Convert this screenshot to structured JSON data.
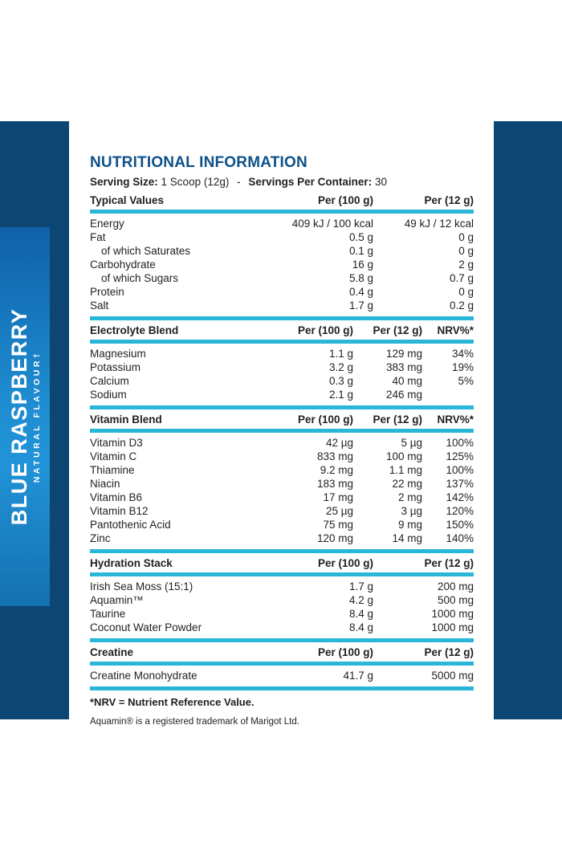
{
  "flavor_panel": {
    "flavor": "BLUE RASPBERRY",
    "subtitle": "NATURAL FLAVOUR†"
  },
  "header": {
    "title": "NUTRITIONAL INFORMATION",
    "serving_size_label": "Serving Size:",
    "serving_size_value": "1 Scoop (12g)",
    "separator": "-",
    "servings_label": "Servings Per Container:",
    "servings_value": "30"
  },
  "sections": [
    {
      "name": "Typical Values",
      "columns": [
        "Per (100 g)",
        "Per (12 g)"
      ],
      "rows": [
        {
          "label": "Energy",
          "per100": "409 kJ / 100 kcal",
          "per12": "49 kJ / 12 kcal"
        },
        {
          "label": "Fat",
          "per100": "0.5 g",
          "per12": "0 g"
        },
        {
          "label": "of which Saturates",
          "indent": true,
          "per100": "0.1 g",
          "per12": "0 g"
        },
        {
          "label": "Carbohydrate",
          "per100": "16 g",
          "per12": "2 g"
        },
        {
          "label": "of which Sugars",
          "indent": true,
          "per100": "5.8 g",
          "per12": "0.7 g"
        },
        {
          "label": "Protein",
          "per100": "0.4 g",
          "per12": "0 g"
        },
        {
          "label": "Salt",
          "per100": "1.7 g",
          "per12": "0.2 g"
        }
      ]
    },
    {
      "name": "Electrolyte Blend",
      "columns": [
        "Per (100 g)",
        "Per (12 g)",
        "NRV%*"
      ],
      "rows": [
        {
          "label": "Magnesium",
          "per100": "1.1 g",
          "per12": "129 mg",
          "nrv": "34%"
        },
        {
          "label": "Potassium",
          "per100": "3.2 g",
          "per12": "383 mg",
          "nrv": "19%"
        },
        {
          "label": "Calcium",
          "per100": "0.3 g",
          "per12": "40 mg",
          "nrv": "5%"
        },
        {
          "label": "Sodium",
          "per100": "2.1 g",
          "per12": "246 mg",
          "nrv": ""
        }
      ]
    },
    {
      "name": "Vitamin Blend",
      "columns": [
        "Per (100 g)",
        "Per (12 g)",
        "NRV%*"
      ],
      "rows": [
        {
          "label": "Vitamin D3",
          "per100": "42 µg",
          "per12": "5 µg",
          "nrv": "100%"
        },
        {
          "label": "Vitamin C",
          "per100": "833 mg",
          "per12": "100 mg",
          "nrv": "125%"
        },
        {
          "label": "Thiamine",
          "per100": "9.2 mg",
          "per12": "1.1 mg",
          "nrv": "100%"
        },
        {
          "label": "Niacin",
          "per100": "183 mg",
          "per12": "22 mg",
          "nrv": "137%"
        },
        {
          "label": "Vitamin B6",
          "per100": "17 mg",
          "per12": "2 mg",
          "nrv": "142%"
        },
        {
          "label": "Vitamin B12",
          "per100": "25 µg",
          "per12": "3 µg",
          "nrv": "120%"
        },
        {
          "label": "Pantothenic Acid",
          "per100": "75 mg",
          "per12": "9 mg",
          "nrv": "150%"
        },
        {
          "label": "Zinc",
          "per100": "120 mg",
          "per12": "14 mg",
          "nrv": "140%"
        }
      ]
    },
    {
      "name": "Hydration Stack",
      "columns": [
        "Per (100 g)",
        "Per (12 g)"
      ],
      "rows": [
        {
          "label": "Irish Sea Moss (15:1)",
          "per100": "1.7 g",
          "per12": "200 mg"
        },
        {
          "label": "Aquamin™",
          "per100": "4.2 g",
          "per12": "500 mg"
        },
        {
          "label": "Taurine",
          "per100": "8.4 g",
          "per12": "1000 mg"
        },
        {
          "label": "Coconut Water Powder",
          "per100": "8.4 g",
          "per12": "1000 mg"
        }
      ]
    },
    {
      "name": "Creatine",
      "columns": [
        "Per (100 g)",
        "Per (12 g)"
      ],
      "rows": [
        {
          "label": "Creatine Monohydrate",
          "per100": "41.7 g",
          "per12": "5000 mg"
        }
      ]
    }
  ],
  "footnotes": {
    "nrv": "*NRV = Nutrient Reference Value.",
    "aquamin": "Aquamin® is a registered trademark of Marigot Ltd."
  },
  "colors": {
    "navy": "#0d4573",
    "flavor_gradient_top": "#0f61a9",
    "flavor_gradient_mid": "#2293d8",
    "flavor_gradient_bottom": "#1471af",
    "cyan_divider": "#29b6d8",
    "title_blue": "#0e5189",
    "text": "#1f2023"
  }
}
